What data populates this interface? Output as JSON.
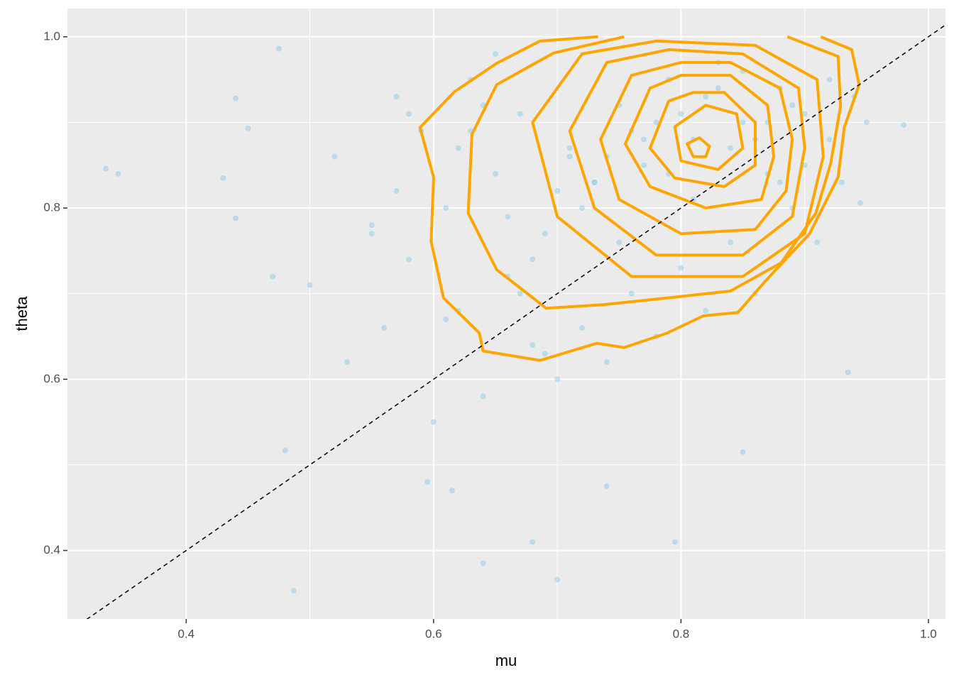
{
  "chart_data": {
    "type": "scatter",
    "x_label": "mu",
    "y_label": "theta",
    "xlim": [
      0.304,
      1.0138
    ],
    "ylim": [
      0.32,
      1.033
    ],
    "xticks": [
      0.4,
      0.6,
      0.8,
      {
        "value": 1,
        "label": "1.0"
      }
    ],
    "yticks": [
      0.4,
      0.6,
      0.8,
      {
        "value": 1,
        "label": "1.0"
      }
    ],
    "grid": true,
    "point_color": "#87ceeb",
    "x": [
      0.335,
      0.345,
      0.475,
      0.487,
      0.7,
      0.64,
      0.68,
      0.795,
      0.74,
      0.48,
      0.85,
      0.98,
      0.935,
      0.945,
      0.44,
      0.45,
      0.43,
      0.44,
      0.47,
      0.615,
      0.595,
      0.5,
      0.52,
      0.53,
      0.55,
      0.56,
      0.57,
      0.58,
      0.59,
      0.6,
      0.61,
      0.62,
      0.63,
      0.64,
      0.65,
      0.66,
      0.67,
      0.68,
      0.69,
      0.7,
      0.71,
      0.72,
      0.73,
      0.74,
      0.75,
      0.76,
      0.77,
      0.78,
      0.79,
      0.8,
      0.81,
      0.82,
      0.83,
      0.84,
      0.85,
      0.86,
      0.87,
      0.88,
      0.89,
      0.9,
      0.91,
      0.92,
      0.93,
      0.94,
      0.95,
      0.62,
      0.66,
      0.7,
      0.74,
      0.78,
      0.82,
      0.86,
      0.9,
      0.64,
      0.68,
      0.72,
      0.76,
      0.8,
      0.84,
      0.88,
      0.92,
      0.63,
      0.67,
      0.71,
      0.75,
      0.79,
      0.83,
      0.87,
      0.91,
      0.65,
      0.69,
      0.73,
      0.77,
      0.81,
      0.85,
      0.89,
      0.55,
      0.58,
      0.61,
      0.57
    ],
    "y": [
      0.846,
      0.84,
      0.986,
      0.353,
      0.366,
      0.385,
      0.41,
      0.41,
      0.475,
      0.517,
      0.515,
      0.897,
      0.608,
      0.806,
      0.928,
      0.893,
      0.835,
      0.788,
      0.72,
      0.47,
      0.48,
      0.71,
      0.86,
      0.62,
      0.78,
      0.66,
      0.93,
      0.74,
      0.89,
      0.55,
      0.8,
      0.68,
      0.95,
      0.58,
      0.84,
      0.72,
      0.91,
      0.64,
      0.77,
      0.6,
      0.87,
      0.66,
      0.83,
      0.62,
      0.92,
      0.7,
      0.85,
      0.65,
      0.95,
      0.73,
      0.88,
      0.68,
      0.97,
      0.76,
      0.9,
      0.7,
      0.84,
      0.94,
      0.8,
      0.91,
      0.76,
      0.88,
      0.83,
      0.93,
      0.9,
      0.87,
      0.79,
      0.82,
      0.86,
      0.9,
      0.93,
      0.88,
      0.85,
      0.92,
      0.74,
      0.8,
      0.89,
      0.91,
      0.87,
      0.83,
      0.95,
      0.89,
      0.7,
      0.86,
      0.76,
      0.84,
      0.94,
      0.9,
      0.79,
      0.98,
      0.63,
      0.83,
      0.88,
      0.81,
      0.96,
      0.92,
      0.77,
      0.91,
      0.67,
      0.82
    ],
    "contour_color": "#ffa500",
    "contours": [
      {
        "closed": false,
        "x": [
          0.733,
          0.686,
          0.651,
          0.617,
          0.589,
          0.6,
          0.598,
          0.608,
          0.637,
          0.64,
          0.686,
          0.732,
          0.754,
          0.789,
          0.818,
          0.846,
          0.869,
          0.904,
          0.927,
          0.932,
          0.944,
          0.938,
          0.913
        ],
        "y": [
          1.0,
          0.995,
          0.969,
          0.936,
          0.894,
          0.836,
          0.761,
          0.695,
          0.654,
          0.633,
          0.622,
          0.642,
          0.637,
          0.654,
          0.674,
          0.678,
          0.716,
          0.77,
          0.836,
          0.894,
          0.944,
          0.985,
          1.0
        ]
      },
      {
        "closed": false,
        "x": [
          0.754,
          0.697,
          0.651,
          0.631,
          0.628,
          0.651,
          0.691,
          0.737,
          0.789,
          0.84,
          0.881,
          0.909,
          0.921,
          0.929,
          0.927,
          0.886
        ],
        "y": [
          1.0,
          0.981,
          0.944,
          0.886,
          0.794,
          0.728,
          0.683,
          0.687,
          0.695,
          0.703,
          0.736,
          0.794,
          0.852,
          0.919,
          0.977,
          1.0
        ]
      },
      {
        "closed": true,
        "x": [
          0.72,
          0.68,
          0.7,
          0.76,
          0.85,
          0.9,
          0.915,
          0.91,
          0.86,
          0.78
        ],
        "y": [
          0.98,
          0.9,
          0.79,
          0.72,
          0.72,
          0.77,
          0.86,
          0.95,
          0.99,
          0.995
        ]
      },
      {
        "closed": true,
        "x": [
          0.74,
          0.71,
          0.73,
          0.78,
          0.85,
          0.89,
          0.9,
          0.895,
          0.85,
          0.79
        ],
        "y": [
          0.97,
          0.89,
          0.8,
          0.745,
          0.745,
          0.79,
          0.87,
          0.94,
          0.98,
          0.985
        ]
      },
      {
        "closed": true,
        "x": [
          0.76,
          0.735,
          0.75,
          0.8,
          0.86,
          0.885,
          0.89,
          0.88,
          0.84,
          0.8
        ],
        "y": [
          0.955,
          0.88,
          0.81,
          0.77,
          0.775,
          0.82,
          0.88,
          0.94,
          0.97,
          0.97
        ]
      },
      {
        "closed": true,
        "x": [
          0.775,
          0.755,
          0.775,
          0.82,
          0.865,
          0.875,
          0.87,
          0.84,
          0.8
        ],
        "y": [
          0.94,
          0.875,
          0.825,
          0.8,
          0.81,
          0.86,
          0.92,
          0.955,
          0.955
        ]
      },
      {
        "closed": true,
        "x": [
          0.79,
          0.775,
          0.795,
          0.835,
          0.86,
          0.86,
          0.835,
          0.81
        ],
        "y": [
          0.925,
          0.87,
          0.835,
          0.825,
          0.85,
          0.9,
          0.935,
          0.935
        ]
      },
      {
        "closed": true,
        "x": [
          0.795,
          0.8,
          0.83,
          0.85,
          0.845,
          0.82
        ],
        "y": [
          0.895,
          0.855,
          0.845,
          0.87,
          0.91,
          0.92
        ]
      },
      {
        "closed": true,
        "x": [
          0.805,
          0.81,
          0.82,
          0.823,
          0.815
        ],
        "y": [
          0.875,
          0.86,
          0.86,
          0.872,
          0.882
        ]
      }
    ],
    "reference_line": {
      "slope": 1,
      "intercept": 0,
      "dashed": true
    }
  }
}
